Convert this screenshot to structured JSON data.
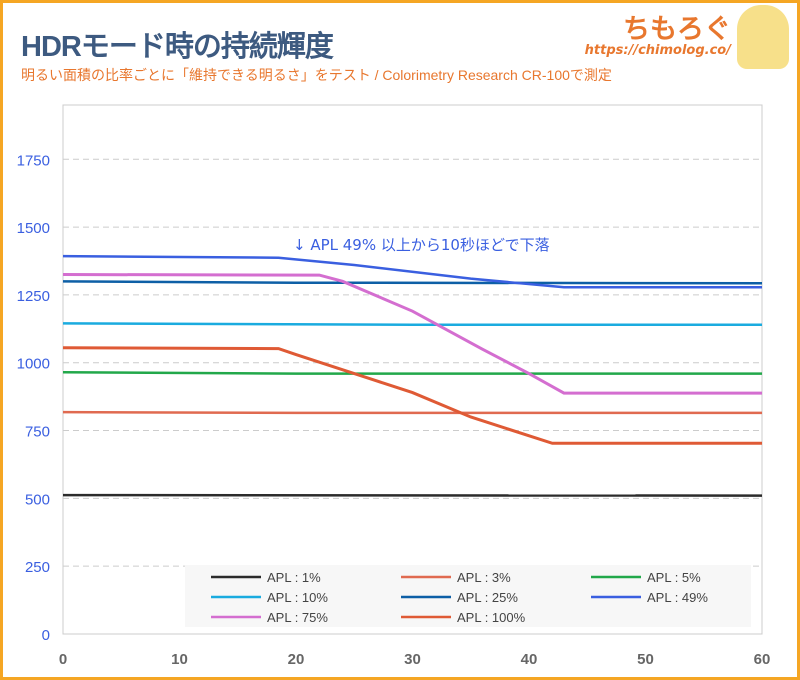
{
  "header": {
    "title": "HDRモード時の持続輝度",
    "subtitle": "明るい面積の比率ごとに「維持できる明るさ」をテスト / Colorimetry Research CR-100で測定",
    "logo_text": "ちもろぐ",
    "logo_url": "https://chimolog.co/"
  },
  "chart_data": {
    "type": "line",
    "title": "HDRモード時の持続輝度",
    "xlabel": "",
    "ylabel": "",
    "xlim": [
      0,
      60
    ],
    "ylim": [
      0,
      1950
    ],
    "xticks": [
      0,
      10,
      20,
      30,
      40,
      50,
      60
    ],
    "yticks": [
      0,
      250,
      500,
      750,
      1000,
      1250,
      1500,
      1750
    ],
    "grid": true,
    "legend_placement": "bottom",
    "annotation": "↓ APL 49% 以上から10秒ほどで下落",
    "series": [
      {
        "name": "APL : 1%",
        "color": "#2b2b2b",
        "points": [
          [
            0,
            512
          ],
          [
            60,
            510
          ]
        ]
      },
      {
        "name": "APL : 3%",
        "color": "#e06a50",
        "points": [
          [
            0,
            818
          ],
          [
            20,
            815
          ],
          [
            60,
            815
          ]
        ]
      },
      {
        "name": "APL : 5%",
        "color": "#22a84a",
        "points": [
          [
            0,
            965
          ],
          [
            20,
            960
          ],
          [
            60,
            960
          ]
        ]
      },
      {
        "name": "APL : 10%",
        "color": "#1aabdf",
        "points": [
          [
            0,
            1145
          ],
          [
            30,
            1140
          ],
          [
            60,
            1140
          ]
        ]
      },
      {
        "name": "APL : 25%",
        "color": "#0d5fa6",
        "points": [
          [
            0,
            1300
          ],
          [
            20,
            1295
          ],
          [
            60,
            1293
          ]
        ]
      },
      {
        "name": "APL : 49%",
        "color": "#3a5fe0",
        "points": [
          [
            0,
            1393
          ],
          [
            18.5,
            1387
          ],
          [
            25,
            1360
          ],
          [
            35,
            1310
          ],
          [
            43,
            1278
          ],
          [
            60,
            1278
          ]
        ]
      },
      {
        "name": "APL : 75%",
        "color": "#d46ed0",
        "points": [
          [
            0,
            1325
          ],
          [
            22,
            1323
          ],
          [
            24,
            1300
          ],
          [
            30,
            1190
          ],
          [
            36,
            1050
          ],
          [
            40,
            960
          ],
          [
            43,
            888
          ],
          [
            60,
            888
          ]
        ]
      },
      {
        "name": "APL : 100%",
        "color": "#df5a35",
        "points": [
          [
            0,
            1055
          ],
          [
            18.5,
            1052
          ],
          [
            20,
            1030
          ],
          [
            25,
            960
          ],
          [
            30,
            890
          ],
          [
            35,
            800
          ],
          [
            42,
            703
          ],
          [
            60,
            703
          ]
        ]
      }
    ]
  }
}
